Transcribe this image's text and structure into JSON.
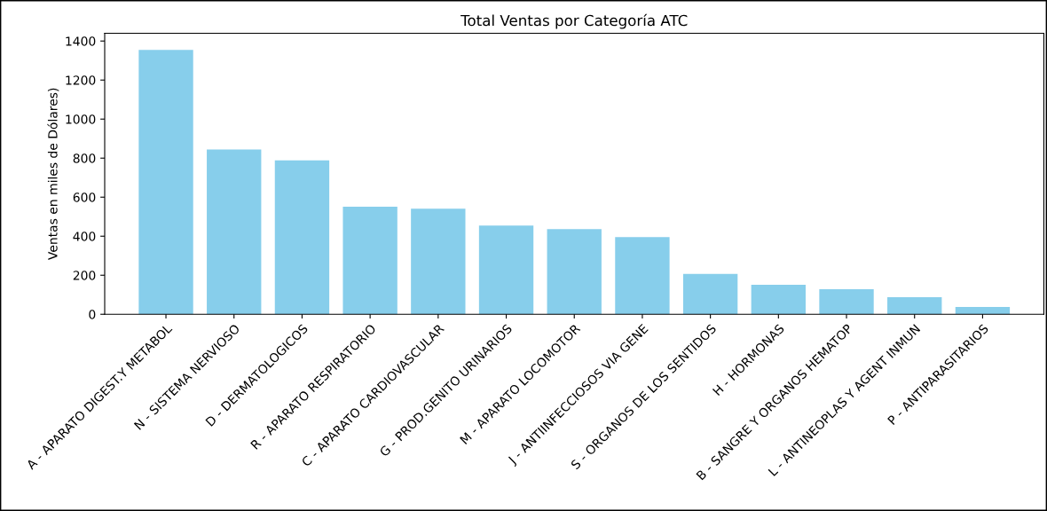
{
  "chart_data": {
    "type": "bar",
    "title": "Total Ventas por Categoría ATC",
    "ylabel": "Ventas en miles de Dólares)",
    "categories": [
      "A - APARATO DIGEST.Y METABOL",
      "N - SISTEMA NERVIOSO",
      "D - DERMATOLOGICOS",
      "R - APARATO RESPIRATORIO",
      "C - APARATO CARDIOVASCULAR",
      "G - PROD.GENITO URINARIOS",
      "M - APARATO LOCOMOTOR",
      "J - ANTIINFECCIOSOS VIA GENE",
      "S - ORGANOS DE LOS SENTIDOS",
      "H - HORMONAS",
      "B - SANGRE Y ORGANOS HEMATOP",
      "L - ANTINEOPLAS Y AGENT INMUN",
      "P - ANTIPARASITARIOS"
    ],
    "values": [
      1354,
      844,
      789,
      551,
      541,
      454,
      436,
      395,
      207,
      151,
      128,
      87,
      37
    ],
    "color": "#87ceeb",
    "ylim": [
      0,
      1440
    ],
    "yticks": [
      0,
      200,
      400,
      600,
      800,
      1000,
      1200,
      1400
    ],
    "grid": false
  }
}
